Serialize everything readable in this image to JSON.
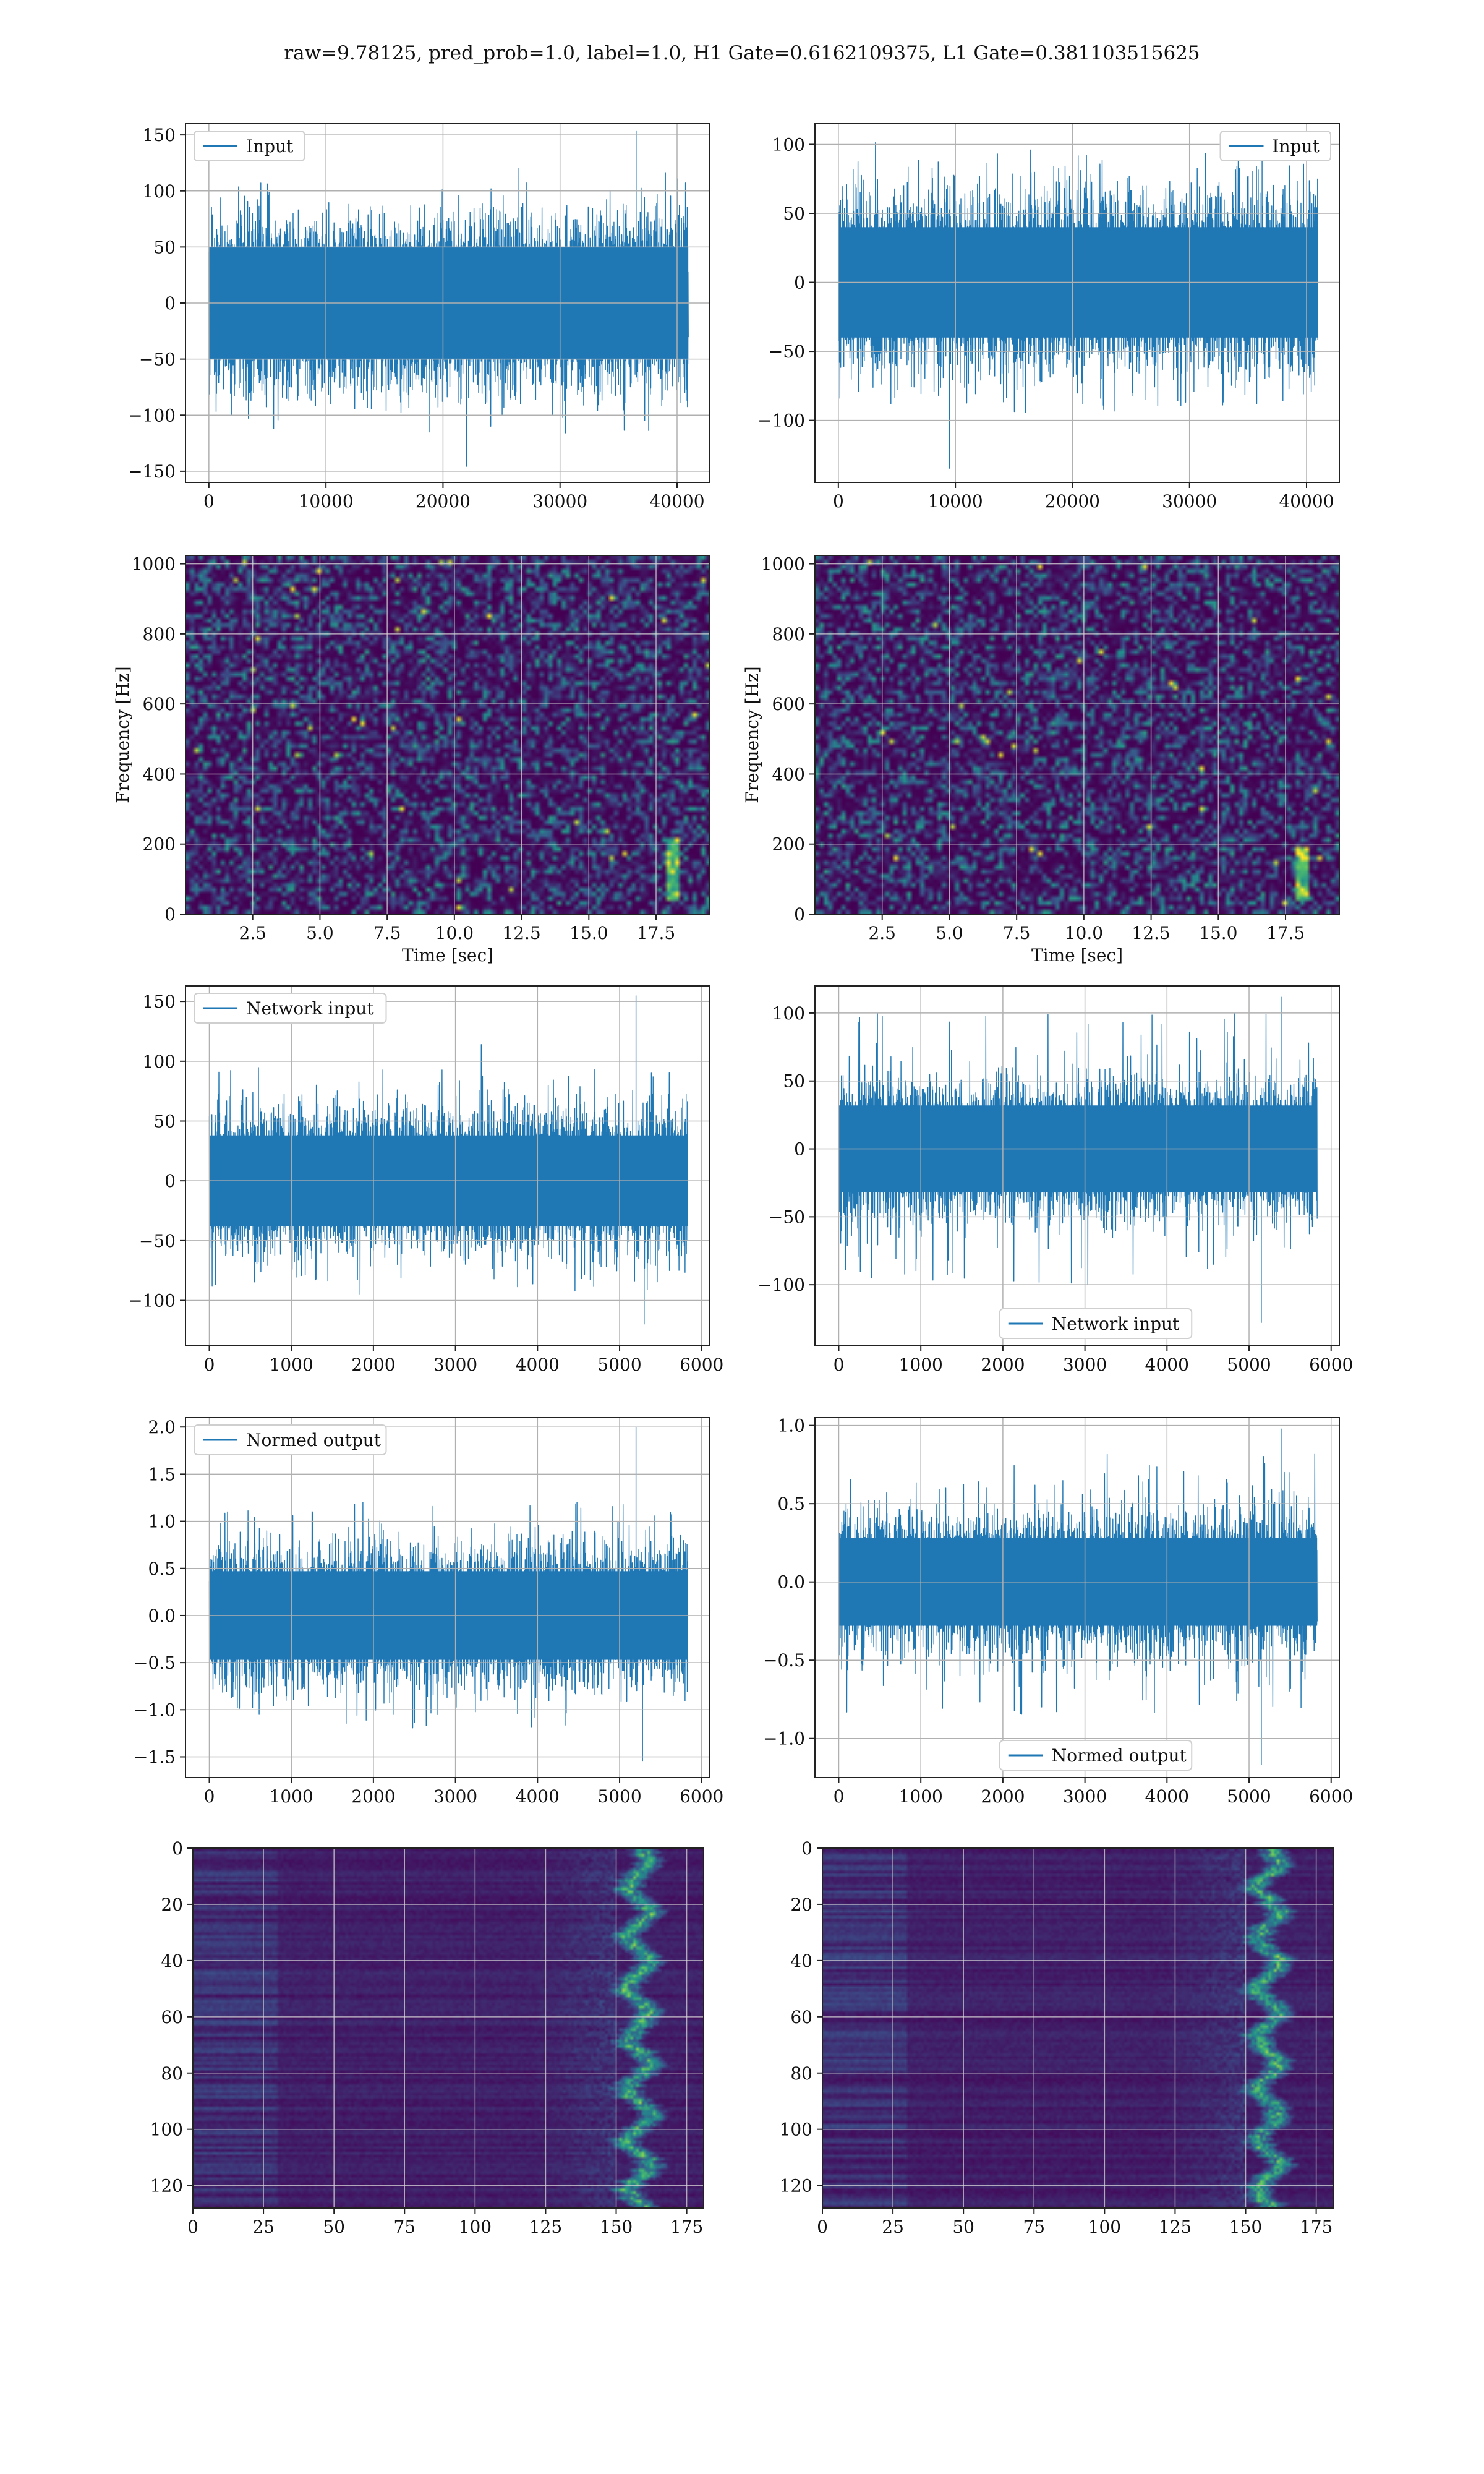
{
  "figure": {
    "title": "raw=9.78125, pred_prob=1.0, label=1.0, H1 Gate=0.6162109375, L1 Gate=0.381103515625",
    "colors": {
      "line": "#1f77b4",
      "cmap_low": "#440154",
      "cmap_mid": "#21918c",
      "cmap_high": "#fde725"
    }
  },
  "chart_data": [
    {
      "id": "row1-left",
      "type": "line",
      "legend": [
        "Input"
      ],
      "legend_loc": "upper-left",
      "xlim": [
        -2000,
        42800
      ],
      "ylim": [
        -160,
        160
      ],
      "xticks": [
        0,
        10000,
        20000,
        30000,
        40000
      ],
      "xticklabels": [
        "0",
        "10000",
        "20000",
        "30000",
        "40000"
      ],
      "yticks": [
        -150,
        -100,
        -50,
        0,
        50,
        100,
        150
      ],
      "yticklabels": [
        "−150",
        "−100",
        "−50",
        "0",
        "50",
        "100",
        "150"
      ],
      "grid": true,
      "series": [
        {
          "name": "Input",
          "n": 40960,
          "envelope": 50,
          "peaks": [
            100,
            -100
          ],
          "spike": {
            "x": 36500,
            "y": 154
          },
          "dip": {
            "x": 22000,
            "y": -146
          }
        }
      ],
      "xlabel": "",
      "ylabel": ""
    },
    {
      "id": "row1-right",
      "type": "line",
      "legend": [
        "Input"
      ],
      "legend_loc": "upper-right",
      "xlim": [
        -2000,
        42800
      ],
      "ylim": [
        -145,
        115
      ],
      "xticks": [
        0,
        10000,
        20000,
        30000,
        40000
      ],
      "xticklabels": [
        "0",
        "10000",
        "20000",
        "30000",
        "40000"
      ],
      "yticks": [
        -100,
        -50,
        0,
        50,
        100
      ],
      "yticklabels": [
        "−100",
        "−50",
        "0",
        "50",
        "100"
      ],
      "grid": true,
      "series": [
        {
          "name": "Input",
          "n": 40960,
          "envelope": 40,
          "peaks": [
            95,
            -95
          ],
          "spike": {
            "x": 36200,
            "y": 105
          },
          "dip": {
            "x": 9500,
            "y": -135
          }
        }
      ],
      "xlabel": "",
      "ylabel": ""
    },
    {
      "id": "row2-left",
      "type": "heatmap",
      "variant": "spectrogram",
      "xlim": [
        0,
        19.5
      ],
      "ylim": [
        0,
        1024
      ],
      "xticks": [
        2.5,
        5,
        7.5,
        10,
        12.5,
        15,
        17.5
      ],
      "xticklabels": [
        "2.5",
        "5.0",
        "7.5",
        "10.0",
        "12.5",
        "15.0",
        "17.5"
      ],
      "yticks": [
        0,
        200,
        400,
        600,
        800,
        1000
      ],
      "yticklabels": [
        "0",
        "200",
        "400",
        "600",
        "800",
        "1000"
      ],
      "xlabel": "Time [sec]",
      "ylabel": "Frequency [Hz]",
      "grid": true,
      "features": [
        {
          "x": 18.0,
          "y": [
            40,
            220
          ],
          "note": ""
        }
      ]
    },
    {
      "id": "row2-right",
      "type": "heatmap",
      "variant": "spectrogram",
      "xlim": [
        0,
        19.5
      ],
      "ylim": [
        0,
        1024
      ],
      "xticks": [
        2.5,
        5,
        7.5,
        10,
        12.5,
        15,
        17.5
      ],
      "xticklabels": [
        "2.5",
        "5.0",
        "7.5",
        "10.0",
        "12.5",
        "15.0",
        "17.5"
      ],
      "yticks": [
        0,
        200,
        400,
        600,
        800,
        1000
      ],
      "yticklabels": [
        "0",
        "200",
        "400",
        "600",
        "800",
        "1000"
      ],
      "xlabel": "Time [sec]",
      "ylabel": "Frequency [Hz]",
      "grid": true,
      "features": [
        {
          "x": 18.0,
          "y": [
            40,
            200
          ],
          "note": ""
        }
      ]
    },
    {
      "id": "row3-left",
      "type": "line",
      "legend": [
        "Network input"
      ],
      "legend_loc": "upper-left",
      "xlim": [
        -290,
        6100
      ],
      "ylim": [
        -138,
        163
      ],
      "xticks": [
        0,
        1000,
        2000,
        3000,
        4000,
        5000,
        6000
      ],
      "xticklabels": [
        "0",
        "1000",
        "2000",
        "3000",
        "4000",
        "5000",
        "6000"
      ],
      "yticks": [
        -100,
        -50,
        0,
        50,
        100,
        150
      ],
      "yticklabels": [
        "−100",
        "−50",
        "0",
        "50",
        "100",
        "150"
      ],
      "grid": true,
      "series": [
        {
          "name": "Network input",
          "n": 5830,
          "envelope": 38,
          "peaks": [
            95,
            -95
          ],
          "spike": {
            "x": 5200,
            "y": 155
          },
          "dip": {
            "x": 5300,
            "y": -120
          }
        }
      ],
      "xlabel": "",
      "ylabel": ""
    },
    {
      "id": "row3-right",
      "type": "line",
      "legend": [
        "Network input"
      ],
      "legend_loc": "lower-center",
      "xlim": [
        -290,
        6100
      ],
      "ylim": [
        -145,
        120
      ],
      "xticks": [
        0,
        1000,
        2000,
        3000,
        4000,
        5000,
        6000
      ],
      "xticklabels": [
        "0",
        "1000",
        "2000",
        "3000",
        "4000",
        "5000",
        "6000"
      ],
      "yticks": [
        -100,
        -50,
        0,
        50,
        100
      ],
      "yticklabels": [
        "−100",
        "−50",
        "0",
        "50",
        "100"
      ],
      "grid": true,
      "series": [
        {
          "name": "Network input",
          "n": 5830,
          "envelope": 32,
          "peaks": [
            100,
            -100
          ],
          "spike": {
            "x": 5400,
            "y": 112
          },
          "dip": {
            "x": 5150,
            "y": -128
          }
        }
      ],
      "xlabel": "",
      "ylabel": ""
    },
    {
      "id": "row4-left",
      "type": "line",
      "legend": [
        "Normed output"
      ],
      "legend_loc": "upper-left",
      "xlim": [
        -290,
        6100
      ],
      "ylim": [
        -1.72,
        2.1
      ],
      "xticks": [
        0,
        1000,
        2000,
        3000,
        4000,
        5000,
        6000
      ],
      "xticklabels": [
        "0",
        "1000",
        "2000",
        "3000",
        "4000",
        "5000",
        "6000"
      ],
      "yticks": [
        -1.5,
        -1.0,
        -0.5,
        0.0,
        0.5,
        1.0,
        1.5,
        2.0
      ],
      "yticklabels": [
        "−1.5",
        "−1.0",
        "−0.5",
        "0.0",
        "0.5",
        "1.0",
        "1.5",
        "2.0"
      ],
      "grid": true,
      "series": [
        {
          "name": "Normed output",
          "n": 5830,
          "envelope": 0.47,
          "peaks": [
            1.2,
            -1.2
          ],
          "spike": {
            "x": 5200,
            "y": 2.0
          },
          "dip": {
            "x": 5280,
            "y": -1.55
          }
        }
      ],
      "xlabel": "",
      "ylabel": ""
    },
    {
      "id": "row4-right",
      "type": "line",
      "legend": [
        "Normed output"
      ],
      "legend_loc": "lower-center",
      "xlim": [
        -290,
        6100
      ],
      "ylim": [
        -1.25,
        1.05
      ],
      "xticks": [
        0,
        1000,
        2000,
        3000,
        4000,
        5000,
        6000
      ],
      "xticklabels": [
        "0",
        "1000",
        "2000",
        "3000",
        "4000",
        "5000",
        "6000"
      ],
      "yticks": [
        -1.0,
        -0.5,
        0.0,
        0.5,
        1.0
      ],
      "yticklabels": [
        "−1.0",
        "−0.5",
        "0.0",
        "0.5",
        "1.0"
      ],
      "grid": true,
      "series": [
        {
          "name": "Normed output",
          "n": 5830,
          "envelope": 0.28,
          "peaks": [
            0.85,
            -0.85
          ],
          "spike": {
            "x": 5400,
            "y": 0.98
          },
          "dip": {
            "x": 5150,
            "y": -1.17
          }
        }
      ],
      "xlabel": "",
      "ylabel": ""
    },
    {
      "id": "row5-left",
      "type": "heatmap",
      "variant": "imshow",
      "xlim": [
        0,
        181
      ],
      "ylim": [
        128,
        0
      ],
      "rows": 128,
      "cols": 181,
      "xticks": [
        0,
        25,
        50,
        75,
        100,
        125,
        150,
        175
      ],
      "xticklabels": [
        "0",
        "25",
        "50",
        "75",
        "100",
        "125",
        "150",
        "175"
      ],
      "yticks": [
        0,
        20,
        40,
        60,
        80,
        100,
        120
      ],
      "yticklabels": [
        "0",
        "20",
        "40",
        "60",
        "80",
        "100",
        "120"
      ],
      "xlabel": "",
      "ylabel": "",
      "grid": true,
      "features": [
        {
          "x": [
            150,
            170
          ],
          "y": [
            0,
            128
          ],
          "note": ""
        }
      ]
    },
    {
      "id": "row5-right",
      "type": "heatmap",
      "variant": "imshow",
      "xlim": [
        0,
        181
      ],
      "ylim": [
        128,
        0
      ],
      "rows": 128,
      "cols": 181,
      "xticks": [
        0,
        25,
        50,
        75,
        100,
        125,
        150,
        175
      ],
      "xticklabels": [
        "0",
        "25",
        "50",
        "75",
        "100",
        "125",
        "150",
        "175"
      ],
      "yticks": [
        0,
        20,
        40,
        60,
        80,
        100,
        120
      ],
      "yticklabels": [
        "0",
        "20",
        "40",
        "60",
        "80",
        "100",
        "120"
      ],
      "xlabel": "",
      "ylabel": "",
      "grid": true,
      "features": [
        {
          "x": [
            150,
            175
          ],
          "y": [
            0,
            128
          ],
          "note": ""
        }
      ]
    }
  ]
}
